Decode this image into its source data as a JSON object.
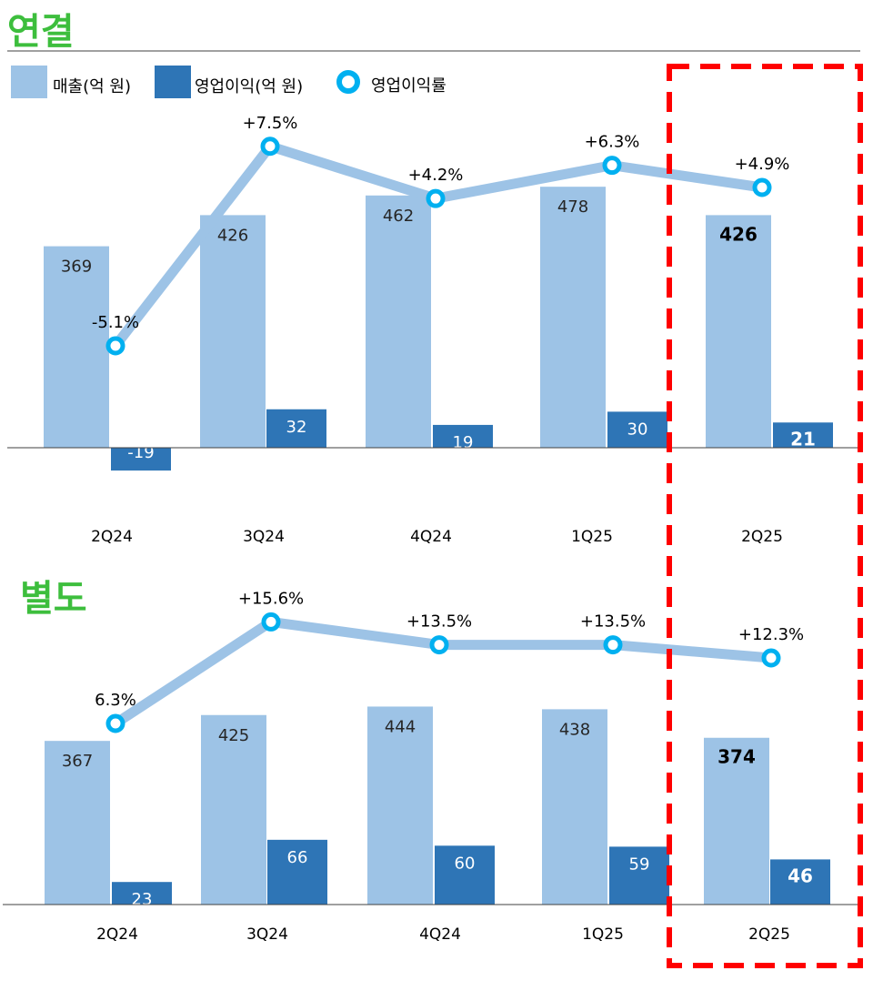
{
  "colors": {
    "revenue": "#9DC3E6",
    "op_income": "#2E75B6",
    "margin_line": "#9DC3E6",
    "margin_marker": "#00B0F0",
    "title": "#3DBE3D",
    "highlight": "#FF0000"
  },
  "legend": [
    {
      "label": "매출(억 원)",
      "kind": "bar",
      "series": "revenue"
    },
    {
      "label": "영업이익(억 원)",
      "kind": "bar",
      "series": "op_income"
    },
    {
      "label": "영업이익률",
      "kind": "marker",
      "series": "margin"
    }
  ],
  "chart_data": [
    {
      "type": "bar",
      "title": "연결",
      "categories": [
        "2Q24",
        "3Q24",
        "4Q24",
        "1Q25",
        "2Q25"
      ],
      "series": [
        {
          "name": "매출(억 원)",
          "values": [
            369,
            426,
            462,
            478,
            426
          ]
        },
        {
          "name": "영업이익(억 원)",
          "values": [
            -19,
            32,
            19,
            30,
            21
          ]
        },
        {
          "name": "영업이익률",
          "type": "line",
          "values": [
            -5.1,
            7.5,
            4.2,
            6.3,
            4.9
          ],
          "labels": [
            "-5.1%",
            "+7.5%",
            "+4.2%",
            "+6.3%",
            "+4.9%"
          ]
        }
      ],
      "highlight_category": "2Q25"
    },
    {
      "type": "bar",
      "title": "별도",
      "categories": [
        "2Q24",
        "3Q24",
        "4Q24",
        "1Q25",
        "2Q25"
      ],
      "series": [
        {
          "name": "매출(억 원)",
          "values": [
            367,
            425,
            444,
            438,
            374
          ]
        },
        {
          "name": "영업이익(억 원)",
          "values": [
            23,
            66,
            60,
            59,
            46
          ]
        },
        {
          "name": "영업이익률",
          "type": "line",
          "values": [
            6.3,
            15.6,
            13.5,
            13.5,
            12.3
          ],
          "labels": [
            "6.3%",
            "+15.6%",
            "+13.5%",
            "+13.5%",
            "+12.3%"
          ]
        }
      ],
      "highlight_category": "2Q25"
    }
  ]
}
